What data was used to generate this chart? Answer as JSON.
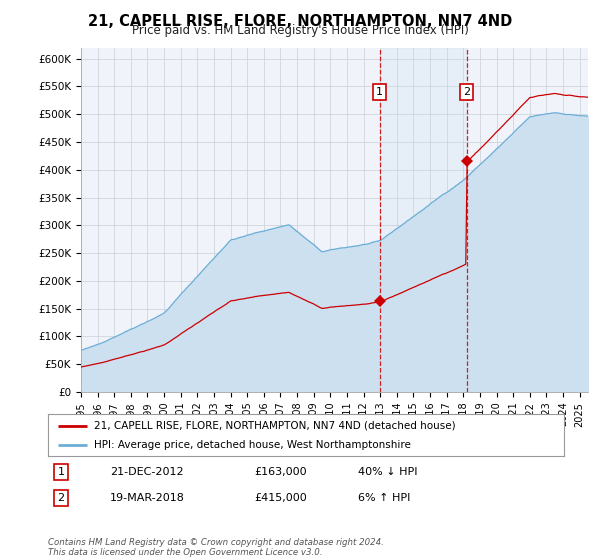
{
  "title": "21, CAPELL RISE, FLORE, NORTHAMPTON, NN7 4ND",
  "subtitle": "Price paid vs. HM Land Registry's House Price Index (HPI)",
  "legend_line1": "21, CAPELL RISE, FLORE, NORTHAMPTON, NN7 4ND (detached house)",
  "legend_line2": "HPI: Average price, detached house, West Northamptonshire",
  "annotation1_date": "21-DEC-2012",
  "annotation1_price": "£163,000",
  "annotation1_hpi": "40% ↓ HPI",
  "annotation1_year": 2012.97,
  "annotation1_value": 163000,
  "annotation2_date": "19-MAR-2018",
  "annotation2_price": "£415,000",
  "annotation2_hpi": "6% ↑ HPI",
  "annotation2_year": 2018.21,
  "annotation2_value": 415000,
  "hpi_color": "#6baed6",
  "hpi_fill_color": "#cce0f0",
  "price_color": "#cc0000",
  "xlim": [
    1995,
    2025.5
  ],
  "ylim": [
    0,
    620000
  ],
  "yticks": [
    0,
    50000,
    100000,
    150000,
    200000,
    250000,
    300000,
    350000,
    400000,
    450000,
    500000,
    550000,
    600000
  ],
  "ytick_labels": [
    "£0",
    "£50K",
    "£100K",
    "£150K",
    "£200K",
    "£250K",
    "£300K",
    "£350K",
    "£400K",
    "£450K",
    "£500K",
    "£550K",
    "£600K"
  ],
  "background_color": "#ffffff",
  "plot_bg_color": "#f0f4fa",
  "footer": "Contains HM Land Registry data © Crown copyright and database right 2024.\nThis data is licensed under the Open Government Licence v3.0."
}
